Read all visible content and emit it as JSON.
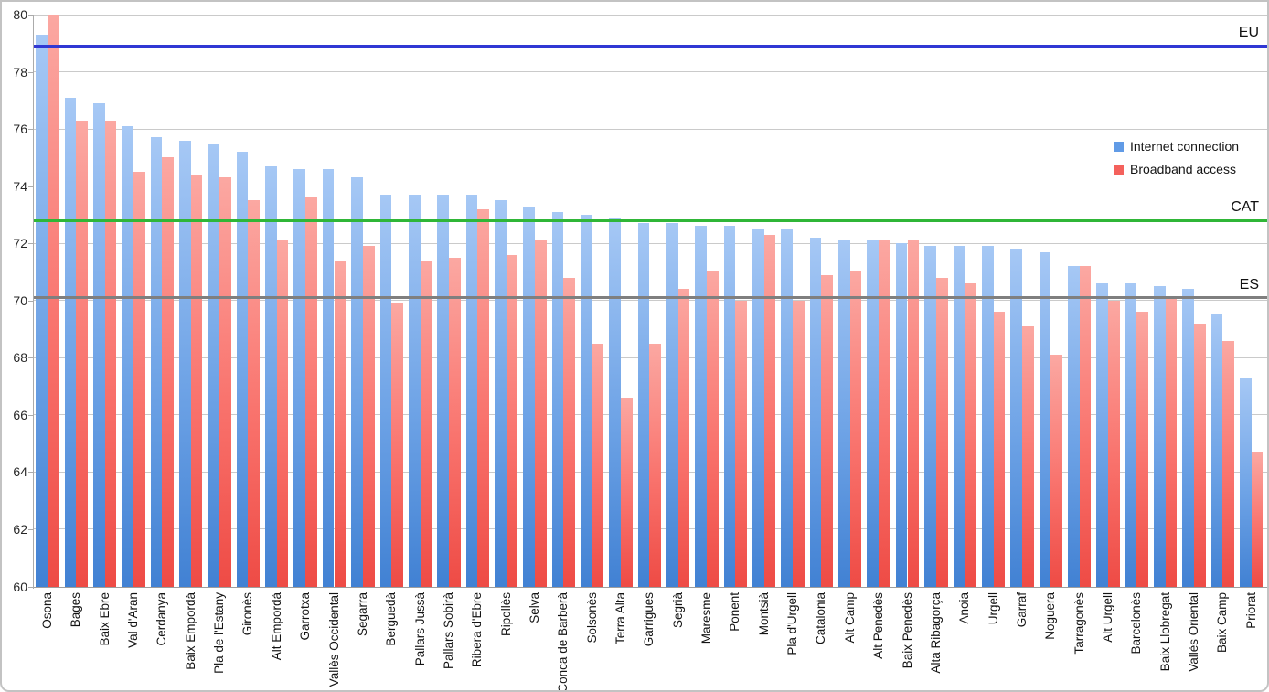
{
  "chart_data": {
    "type": "bar",
    "title": "",
    "categories": [
      "Osona",
      "Bages",
      "Baix Ebre",
      "Val d'Aran",
      "Cerdanya",
      "Baix Empordà",
      "Pla de l'Estany",
      "Gironès",
      "Alt Empordà",
      "Garrotxa",
      "Vallès Occidental",
      "Segarra",
      "Berguedà",
      "Pallars Jussà",
      "Pallars Sobirà",
      "Ribera d'Ebre",
      "Ripollès",
      "Selva",
      "Conca de Barberà",
      "Solsonès",
      "Terra Alta",
      "Garrigues",
      "Segrià",
      "Maresme",
      "Ponent",
      "Montsià",
      "Pla d'Urgell",
      "Catalonia",
      "Alt Camp",
      "Alt Penedès",
      "Baix Penedès",
      "Alta Ribagorça",
      "Anoia",
      "Urgell",
      "Garraf",
      "Noguera",
      "Tarragonès",
      "Alt Urgell",
      "Barcelonès",
      "Baix Llobregat",
      "Vallès Oriental",
      "Baix Camp",
      "Priorat"
    ],
    "series": [
      {
        "name": "Internet connection",
        "legend_color": "#619be6",
        "values": [
          79.3,
          77.1,
          76.9,
          76.1,
          75.7,
          75.6,
          75.5,
          75.2,
          74.7,
          74.6,
          74.6,
          74.3,
          73.7,
          73.7,
          73.7,
          73.7,
          73.5,
          73.3,
          73.1,
          73.0,
          72.9,
          72.7,
          72.7,
          72.6,
          72.6,
          72.5,
          72.5,
          72.2,
          72.1,
          72.1,
          72.0,
          71.9,
          71.9,
          71.9,
          71.8,
          71.7,
          71.2,
          70.6,
          70.6,
          70.5,
          70.4,
          69.5,
          67.3
        ]
      },
      {
        "name": "Broadband access",
        "legend_color": "#f4615c",
        "values": [
          80.0,
          76.3,
          76.3,
          74.5,
          75.0,
          74.4,
          74.3,
          73.5,
          72.1,
          73.6,
          71.4,
          71.9,
          69.9,
          71.4,
          71.5,
          73.2,
          71.6,
          72.1,
          70.8,
          68.5,
          66.6,
          68.5,
          70.4,
          71.0,
          70.0,
          72.3,
          70.0,
          70.9,
          71.0,
          72.1,
          72.1,
          70.8,
          70.6,
          69.6,
          69.1,
          68.1,
          71.2,
          70.0,
          69.6,
          70.1,
          69.2,
          68.6,
          64.7
        ]
      }
    ],
    "reference_lines": [
      {
        "label": "EU",
        "value": 78.9,
        "color": "#3038d4"
      },
      {
        "label": "CAT",
        "value": 72.8,
        "color": "#2fb637"
      },
      {
        "label": "ES",
        "value": 70.1,
        "color": "#7f7f7f"
      }
    ],
    "y_axis": {
      "min": 60,
      "max": 80,
      "step": 2,
      "tick_labels": [
        "60",
        "62",
        "64",
        "66",
        "68",
        "70",
        "72",
        "74",
        "76",
        "78",
        "80"
      ]
    },
    "grid": true,
    "legend_position": "upper-right-inside",
    "bar_colors": {
      "internet_top": "#a6c8f5",
      "internet_bottom": "#4181d3",
      "broadband_top": "#fba8a2",
      "broadband_bottom": "#ee4b45"
    }
  }
}
